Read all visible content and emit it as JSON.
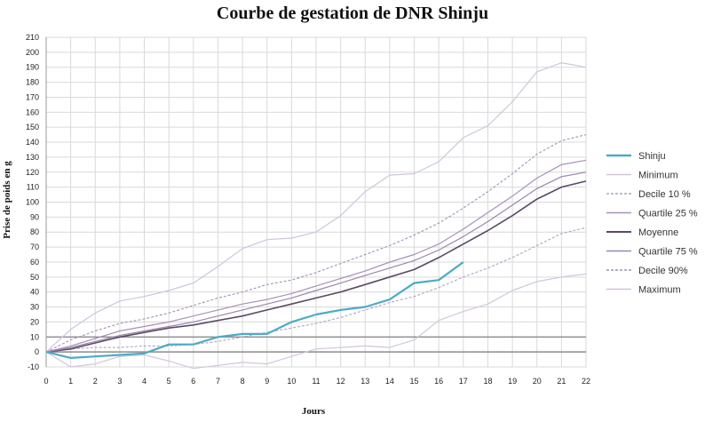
{
  "chart_data": {
    "type": "line",
    "title": "Courbe de gestation de DNR Shinju",
    "xlabel": "Jours",
    "ylabel": "Prise de poids en g",
    "xlim": [
      0,
      22
    ],
    "ylim": [
      -10,
      210
    ],
    "x_ticks": [
      0,
      1,
      2,
      3,
      4,
      5,
      6,
      7,
      8,
      9,
      10,
      11,
      12,
      13,
      14,
      15,
      16,
      17,
      18,
      19,
      20,
      21,
      22
    ],
    "y_ticks": [
      -10,
      0,
      10,
      20,
      30,
      40,
      50,
      60,
      70,
      80,
      90,
      100,
      110,
      120,
      130,
      140,
      150,
      160,
      170,
      180,
      190,
      200,
      210
    ],
    "grid": true,
    "legend_position": "right",
    "reference_line": 10,
    "series": [
      {
        "name": "Shinju",
        "color": "#4bacc6",
        "width": 2.2,
        "dash": "",
        "x": [
          0,
          1,
          2,
          3,
          4,
          5,
          6,
          7,
          8,
          9,
          10,
          11,
          12,
          13,
          14,
          15,
          16,
          17
        ],
        "values": [
          0,
          -4,
          -3,
          -2,
          -1,
          5,
          5,
          10,
          12,
          12,
          20,
          25,
          28,
          30,
          35,
          46,
          48,
          60
        ]
      },
      {
        "name": "Minimum",
        "color": "#d5c4dc",
        "width": 1.2,
        "dash": "",
        "x": [
          0,
          1,
          2,
          3,
          4,
          5,
          6,
          7,
          8,
          9,
          10,
          11,
          12,
          13,
          14,
          15,
          16,
          17,
          18,
          19,
          20,
          21,
          22
        ],
        "values": [
          0,
          -10,
          -8,
          -3,
          -2,
          -6,
          -11,
          -9,
          -7,
          -8,
          -3,
          2,
          3,
          4,
          3,
          8,
          21,
          27,
          32,
          41,
          47,
          50,
          52
        ]
      },
      {
        "name": "Decile 10 %",
        "color": "#b4a2c0",
        "width": 1.1,
        "dash": "3,2",
        "x": [
          0,
          1,
          2,
          3,
          4,
          5,
          6,
          7,
          8,
          9,
          10,
          11,
          12,
          13,
          14,
          15,
          16,
          17,
          18,
          19,
          20,
          21,
          22
        ],
        "values": [
          0,
          2,
          3,
          3,
          4,
          4,
          5,
          7,
          10,
          13,
          16,
          19,
          23,
          28,
          33,
          37,
          43,
          50,
          56,
          63,
          71,
          79,
          83
        ]
      },
      {
        "name": "Quartile 25 %",
        "color": "#a990b9",
        "width": 1.2,
        "dash": "",
        "x": [
          0,
          1,
          2,
          3,
          4,
          5,
          6,
          7,
          8,
          9,
          10,
          11,
          12,
          13,
          14,
          15,
          16,
          17,
          18,
          19,
          20,
          21,
          22
        ],
        "values": [
          0,
          4,
          9,
          14,
          17,
          20,
          24,
          28,
          32,
          35,
          39,
          44,
          49,
          54,
          60,
          65,
          72,
          82,
          93,
          104,
          116,
          125,
          128
        ]
      },
      {
        "name": "Moyenne",
        "color": "#5b4a66",
        "width": 1.6,
        "dash": "",
        "x": [
          0,
          1,
          2,
          3,
          4,
          5,
          6,
          7,
          8,
          9,
          10,
          11,
          12,
          13,
          14,
          15,
          16,
          17,
          18,
          19,
          20,
          21,
          22
        ],
        "values": [
          0,
          2,
          6,
          10,
          13,
          16,
          18,
          21,
          24,
          28,
          32,
          36,
          40,
          45,
          50,
          55,
          63,
          72,
          81,
          91,
          102,
          110,
          114
        ]
      },
      {
        "name": "Quartile 75 %",
        "color": "#9d86ad",
        "width": 1.2,
        "dash": "",
        "x": [
          0,
          1,
          2,
          3,
          4,
          5,
          6,
          7,
          8,
          9,
          10,
          11,
          12,
          13,
          14,
          15,
          16,
          17,
          18,
          19,
          20,
          21,
          22
        ],
        "values": [
          0,
          3,
          7,
          11,
          14,
          17,
          20,
          24,
          28,
          32,
          36,
          41,
          46,
          51,
          56,
          61,
          68,
          77,
          87,
          98,
          109,
          117,
          120
        ]
      },
      {
        "name": "Decile 90%",
        "color": "#a491b3",
        "width": 1.1,
        "dash": "3,2",
        "x": [
          0,
          1,
          2,
          3,
          4,
          5,
          6,
          7,
          8,
          9,
          10,
          11,
          12,
          13,
          14,
          15,
          16,
          17,
          18,
          19,
          20,
          21,
          22
        ],
        "values": [
          0,
          8,
          14,
          19,
          22,
          26,
          31,
          36,
          40,
          45,
          48,
          53,
          59,
          65,
          71,
          78,
          86,
          96,
          107,
          119,
          132,
          141,
          145
        ]
      },
      {
        "name": "Maximum",
        "color": "#d2c3dd",
        "width": 1.2,
        "dash": "",
        "x": [
          0,
          1,
          2,
          3,
          4,
          5,
          6,
          7,
          8,
          9,
          10,
          11,
          12,
          13,
          14,
          15,
          16,
          17,
          18,
          19,
          20,
          21,
          22
        ],
        "values": [
          0,
          15,
          26,
          34,
          37,
          41,
          46,
          57,
          69,
          75,
          76,
          80,
          91,
          107,
          118,
          119,
          127,
          143,
          151,
          167,
          187,
          193,
          190
        ]
      }
    ]
  }
}
